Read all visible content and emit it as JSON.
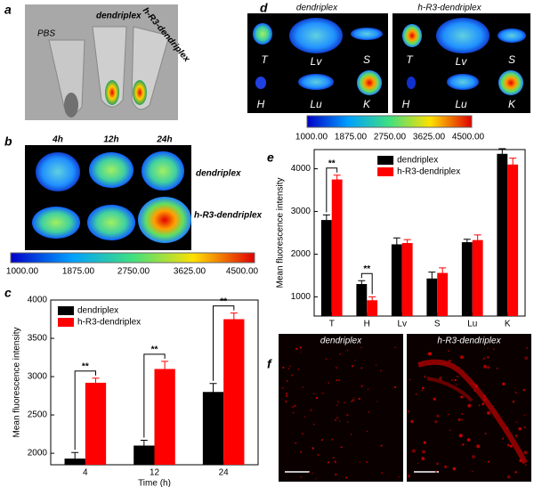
{
  "panel_labels": [
    "a",
    "b",
    "c",
    "d",
    "e",
    "f"
  ],
  "panel_a": {
    "tubes": [
      "PBS",
      "dendriplex",
      "h-R3-dendriplex"
    ]
  },
  "panel_b": {
    "times": [
      "4h",
      "12h",
      "24h"
    ],
    "rows": [
      "dendriplex",
      "h-R3-dendriplex"
    ],
    "colorbar": [
      "1000.00",
      "1875.00",
      "2750.00",
      "3625.00",
      "4500.00"
    ]
  },
  "panel_d": {
    "panels": [
      {
        "title": "dendriplex",
        "organs": [
          "T",
          "Lv",
          "S",
          "H",
          "Lu",
          "K"
        ]
      },
      {
        "title": "h-R3-dendriplex",
        "organs": [
          "T",
          "Lv",
          "S",
          "H",
          "Lu",
          "K"
        ]
      }
    ],
    "colorbar": [
      "1000.00",
      "1875.00",
      "2750.00",
      "3625.00",
      "4500.00"
    ]
  },
  "panel_f": {
    "titles": [
      "dendriplex",
      "h-R3-dendriplex"
    ]
  },
  "chart_data": [
    {
      "type": "bar",
      "ylabel": "Mean fluorescence intensity",
      "xlabel": "Time (h)",
      "categories": [
        "4",
        "12",
        "24"
      ],
      "series": [
        {
          "name": "dendriplex",
          "color": "#000000",
          "values": [
            1930,
            2100,
            2800
          ],
          "errors": [
            80,
            70,
            110
          ]
        },
        {
          "name": "h-R3-dendriplex",
          "color": "#ff0000",
          "values": [
            2920,
            3100,
            3750
          ],
          "errors": [
            60,
            100,
            80
          ]
        }
      ],
      "annotations": [
        "**",
        "**",
        "**"
      ],
      "ylim": [
        1850,
        4000
      ],
      "yticks": [
        2000,
        2500,
        3000,
        3500,
        4000
      ],
      "legend": "upper left"
    },
    {
      "type": "bar",
      "ylabel": "Mean fluorescence intensity",
      "categories": [
        "T",
        "H",
        "Lv",
        "S",
        "Lu",
        "K"
      ],
      "series": [
        {
          "name": "dendriplex",
          "color": "#000000",
          "values": [
            2800,
            1300,
            2230,
            1430,
            2280,
            4350
          ],
          "errors": [
            120,
            80,
            150,
            150,
            70,
            120
          ]
        },
        {
          "name": "h-R3-dendriplex",
          "color": "#ff0000",
          "values": [
            3750,
            920,
            2260,
            1560,
            2330,
            4100
          ],
          "errors": [
            100,
            80,
            80,
            120,
            120,
            150
          ]
        }
      ],
      "annotations": [
        "**",
        "**"
      ],
      "ylim": [
        550,
        4450
      ],
      "yticks": [
        1000,
        2000,
        3000,
        4000
      ],
      "legend": "upper center"
    }
  ]
}
